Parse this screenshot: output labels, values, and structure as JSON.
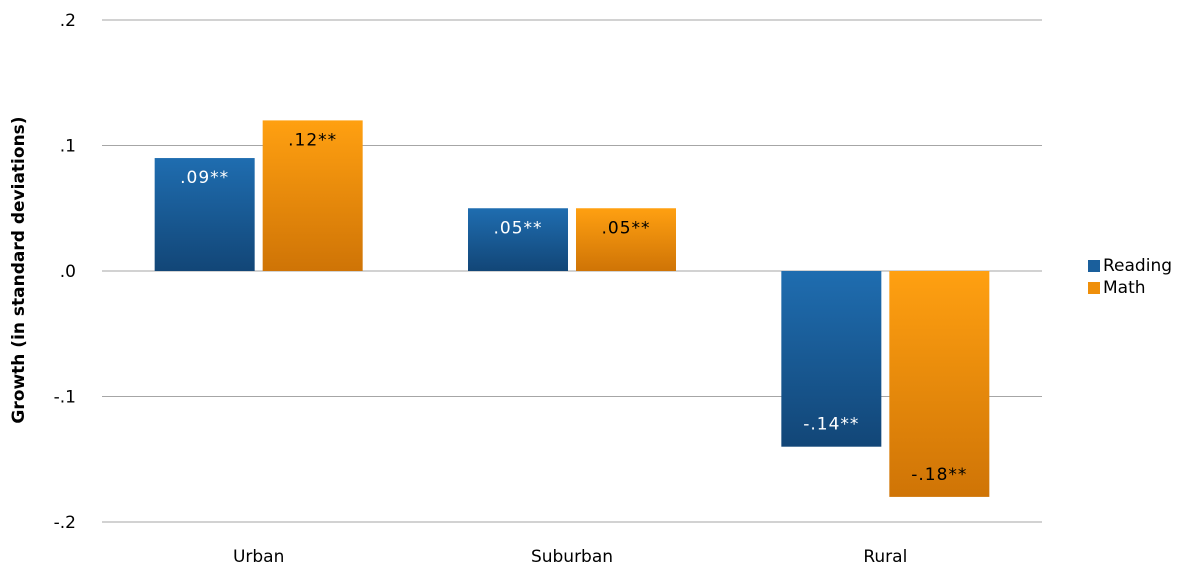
{
  "chart_data": {
    "type": "bar",
    "ylabel": "Growth (in standard deviations)",
    "xlabel": "",
    "ylim": [
      -0.2,
      0.2
    ],
    "yticks": [
      0.2,
      0.1,
      0.0,
      -0.1,
      -0.2
    ],
    "ytick_labels": [
      ".2",
      ".1",
      ".0",
      "-.1",
      "-.2"
    ],
    "categories": [
      "Urban",
      "Suburban",
      "Rural"
    ],
    "grid": true,
    "legend_position": "right",
    "series": [
      {
        "name": "Reading",
        "color": "#1a5f9c",
        "values": [
          0.09,
          0.05,
          -0.14
        ],
        "labels": [
          ".09**",
          ".05**",
          "-.14**"
        ]
      },
      {
        "name": "Math",
        "color": "#ef8f0a",
        "values": [
          0.12,
          0.05,
          -0.18
        ],
        "labels": [
          ".12**",
          ".05**",
          "-.18**"
        ]
      }
    ]
  }
}
